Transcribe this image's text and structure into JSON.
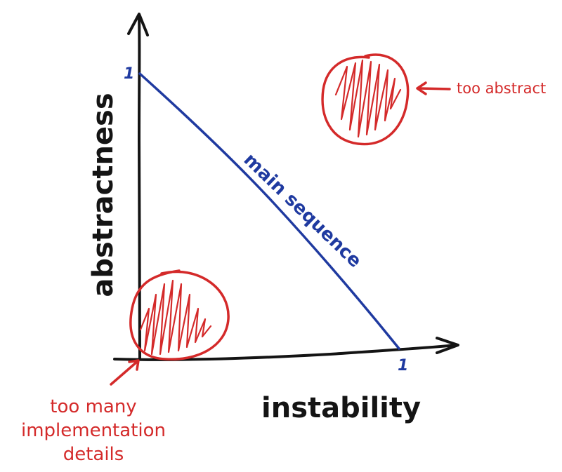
{
  "diagram": {
    "y_axis_label": "abstractness",
    "x_axis_label": "instability",
    "y_max_tick": "1",
    "x_max_tick": "1",
    "line_label": "main sequence",
    "zone_top_label": "too abstract",
    "zone_bottom_lines": [
      "too many",
      "implementation",
      "details"
    ]
  },
  "colors": {
    "axis": "#141414",
    "main_sequence": "#1f3aa0",
    "zone": "#d42a2a"
  }
}
